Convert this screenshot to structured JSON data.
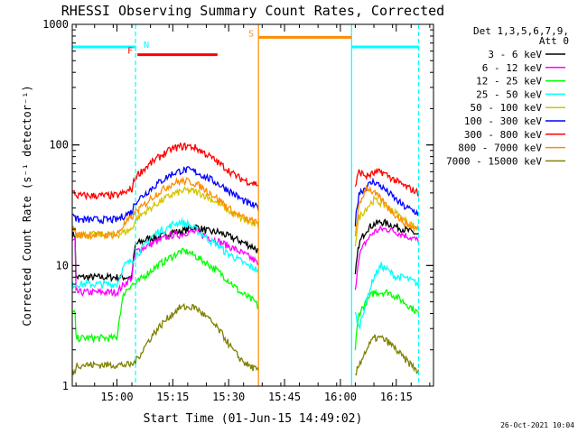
{
  "chart_data": {
    "type": "line",
    "title": "RHESSI Observing Summary Count Rates, Corrected",
    "xlabel": "Start Time (01-Jun-15 14:49:02)",
    "ylabel": "Corrected Count Rate (s⁻¹ detector⁻¹)",
    "yscale": "log",
    "ylim": [
      1,
      1000
    ],
    "xlim_minutes": [
      -1,
      96
    ],
    "x_ticks": [
      {
        "label": "15:00",
        "minutes": 11
      },
      {
        "label": "15:15",
        "minutes": 26
      },
      {
        "label": "15:30",
        "minutes": 41
      },
      {
        "label": "15:45",
        "minutes": 56
      },
      {
        "label": "16:00",
        "minutes": 71
      },
      {
        "label": "16:15",
        "minutes": 86
      }
    ],
    "y_ticks": [
      {
        "label": "1",
        "value": 1
      },
      {
        "label": "10",
        "value": 10
      },
      {
        "label": "100",
        "value": 100
      },
      {
        "label": "1000",
        "value": 1000
      }
    ],
    "legend_header": [
      "Det 1,3,5,6,7,9,",
      "Att 0"
    ],
    "flags": [
      {
        "label": "N",
        "start": -1,
        "end": 16,
        "value": 650,
        "color": "#00ffff"
      },
      {
        "label": "F",
        "start": 16.5,
        "end": 38,
        "value": 560,
        "color": "#ff0000"
      },
      {
        "label": "S",
        "start": 49,
        "end": 74,
        "value": 780,
        "color": "#ff8c00"
      },
      {
        "label": "",
        "start": 74,
        "end": 92,
        "value": 650,
        "color": "#00ffff"
      }
    ],
    "vertical_lines": [
      {
        "minutes": 16,
        "color": "#00ffff",
        "style": "dashed"
      },
      {
        "minutes": 49,
        "color": "#ff8c00",
        "style": "solid"
      },
      {
        "minutes": 74,
        "color": "#00ffff",
        "style": "solid"
      },
      {
        "minutes": 92,
        "color": "#00ffff",
        "style": "dashed"
      }
    ],
    "segments": [
      {
        "start": -1,
        "end": 49
      },
      {
        "start": 75,
        "end": 92
      }
    ],
    "x": [
      0,
      4,
      8,
      11,
      13,
      15,
      16,
      18,
      20,
      22,
      24,
      26,
      28,
      30,
      32,
      34,
      36,
      38,
      40,
      42,
      44,
      46,
      48,
      49,
      75,
      76,
      78,
      80,
      82,
      84,
      86,
      88,
      90,
      92
    ],
    "series": [
      {
        "name": "3 - 6 keV",
        "color": "#000000",
        "values": [
          8,
          8,
          8,
          8,
          8,
          8,
          15,
          16,
          17,
          17,
          18,
          19,
          19,
          20,
          21,
          20,
          19,
          19,
          18,
          17,
          16,
          15,
          14,
          13,
          8,
          15,
          20,
          22,
          23,
          22,
          21,
          20,
          19,
          18
        ]
      },
      {
        "name": "6 - 12 keV",
        "color": "#ff00ff",
        "values": [
          6,
          6,
          6,
          6,
          7,
          8,
          13,
          14,
          15,
          16,
          17,
          18,
          18,
          19,
          19,
          18,
          17,
          16,
          15,
          14,
          13,
          12,
          11,
          10,
          6,
          12,
          16,
          19,
          20,
          20,
          19,
          18,
          17,
          16
        ]
      },
      {
        "name": "12 - 25 keV",
        "color": "#00ff00",
        "values": [
          2.5,
          2.5,
          2.5,
          2.5,
          6,
          7,
          7,
          8,
          9,
          10,
          11,
          12,
          13,
          13,
          12,
          11,
          10,
          9,
          8,
          7,
          6,
          5.5,
          5,
          4.5,
          2,
          4,
          5,
          6,
          6,
          6,
          5.5,
          5,
          4.5,
          4
        ]
      },
      {
        "name": "25 - 50 keV",
        "color": "#00ffff",
        "values": [
          7,
          7,
          7,
          7,
          10,
          11,
          12,
          14,
          17,
          19,
          20,
          22,
          23,
          22,
          20,
          18,
          16,
          15,
          13,
          12,
          11,
          10,
          9.5,
          9,
          4,
          3,
          5,
          8,
          10,
          9,
          8,
          8,
          7.5,
          7
        ]
      },
      {
        "name": "50 - 100 keV",
        "color": "#d4c400",
        "values": [
          18,
          18,
          18,
          18,
          19,
          20,
          24,
          27,
          30,
          33,
          36,
          39,
          41,
          42,
          41,
          39,
          36,
          33,
          30,
          27,
          25,
          23,
          22,
          21,
          15,
          25,
          30,
          35,
          33,
          30,
          27,
          24,
          22,
          20
        ]
      },
      {
        "name": "100 - 300 keV",
        "color": "#0000ff",
        "values": [
          24,
          24,
          24,
          24,
          26,
          28,
          34,
          38,
          43,
          48,
          53,
          58,
          61,
          62,
          60,
          56,
          52,
          48,
          44,
          40,
          36,
          33,
          31,
          30,
          22,
          40,
          45,
          50,
          45,
          40,
          35,
          31,
          29,
          27
        ]
      },
      {
        "name": "300 - 800 keV",
        "color": "#ff0000",
        "values": [
          38,
          38,
          38,
          38,
          40,
          43,
          55,
          62,
          70,
          78,
          86,
          93,
          97,
          98,
          95,
          88,
          80,
          72,
          65,
          58,
          53,
          50,
          48,
          47,
          45,
          60,
          55,
          58,
          60,
          55,
          50,
          46,
          43,
          40
        ]
      },
      {
        "name": "800 - 7000 keV",
        "color": "#ff8c00",
        "values": [
          18,
          18,
          18,
          18,
          22,
          25,
          28,
          31,
          36,
          40,
          44,
          48,
          50,
          50,
          48,
          44,
          40,
          36,
          32,
          28,
          26,
          24,
          23,
          22,
          18,
          30,
          45,
          40,
          35,
          30,
          26,
          23,
          21,
          20
        ]
      },
      {
        "name": "7000 - 15000 keV",
        "color": "#808000",
        "values": [
          1.5,
          1.5,
          1.5,
          1.5,
          1.5,
          1.5,
          1.6,
          2,
          2.5,
          3,
          3.5,
          4,
          4.5,
          4.5,
          4.5,
          4,
          3.5,
          3,
          2.5,
          2,
          1.7,
          1.5,
          1.4,
          1.3,
          1.2,
          1.5,
          2,
          2.5,
          2.5,
          2.3,
          2,
          1.7,
          1.5,
          1.3
        ]
      }
    ]
  },
  "timestamp": "26-Oct-2021 10:04"
}
